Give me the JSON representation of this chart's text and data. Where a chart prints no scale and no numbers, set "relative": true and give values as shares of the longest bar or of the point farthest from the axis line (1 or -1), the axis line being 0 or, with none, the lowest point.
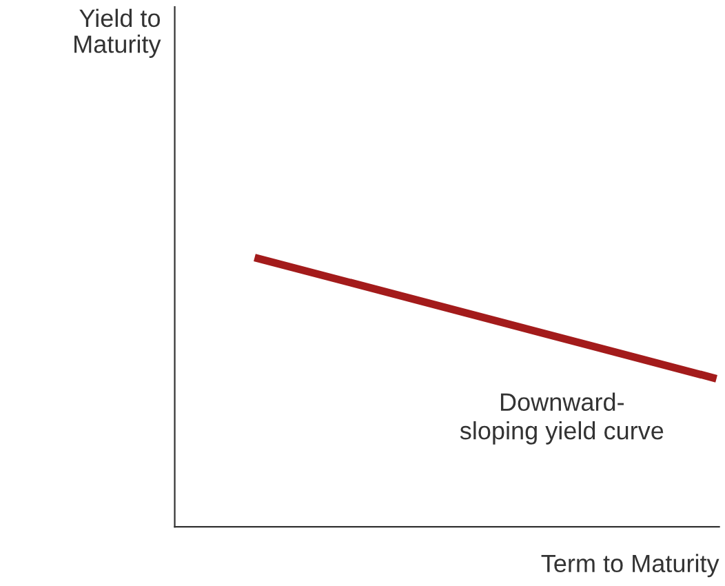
{
  "chart_data": {
    "type": "line",
    "relative": true,
    "xlabel": "Term to Maturity",
    "categories": [
      null,
      null
    ],
    "series": [
      {
        "color": "#a31b1b",
        "values": [
          1,
          0.55
        ]
      }
    ],
    "annotations": [
      "Yield to\nMaturity",
      "Downward-\nsloping yield curve"
    ],
    "grid": false,
    "legend": false
  }
}
